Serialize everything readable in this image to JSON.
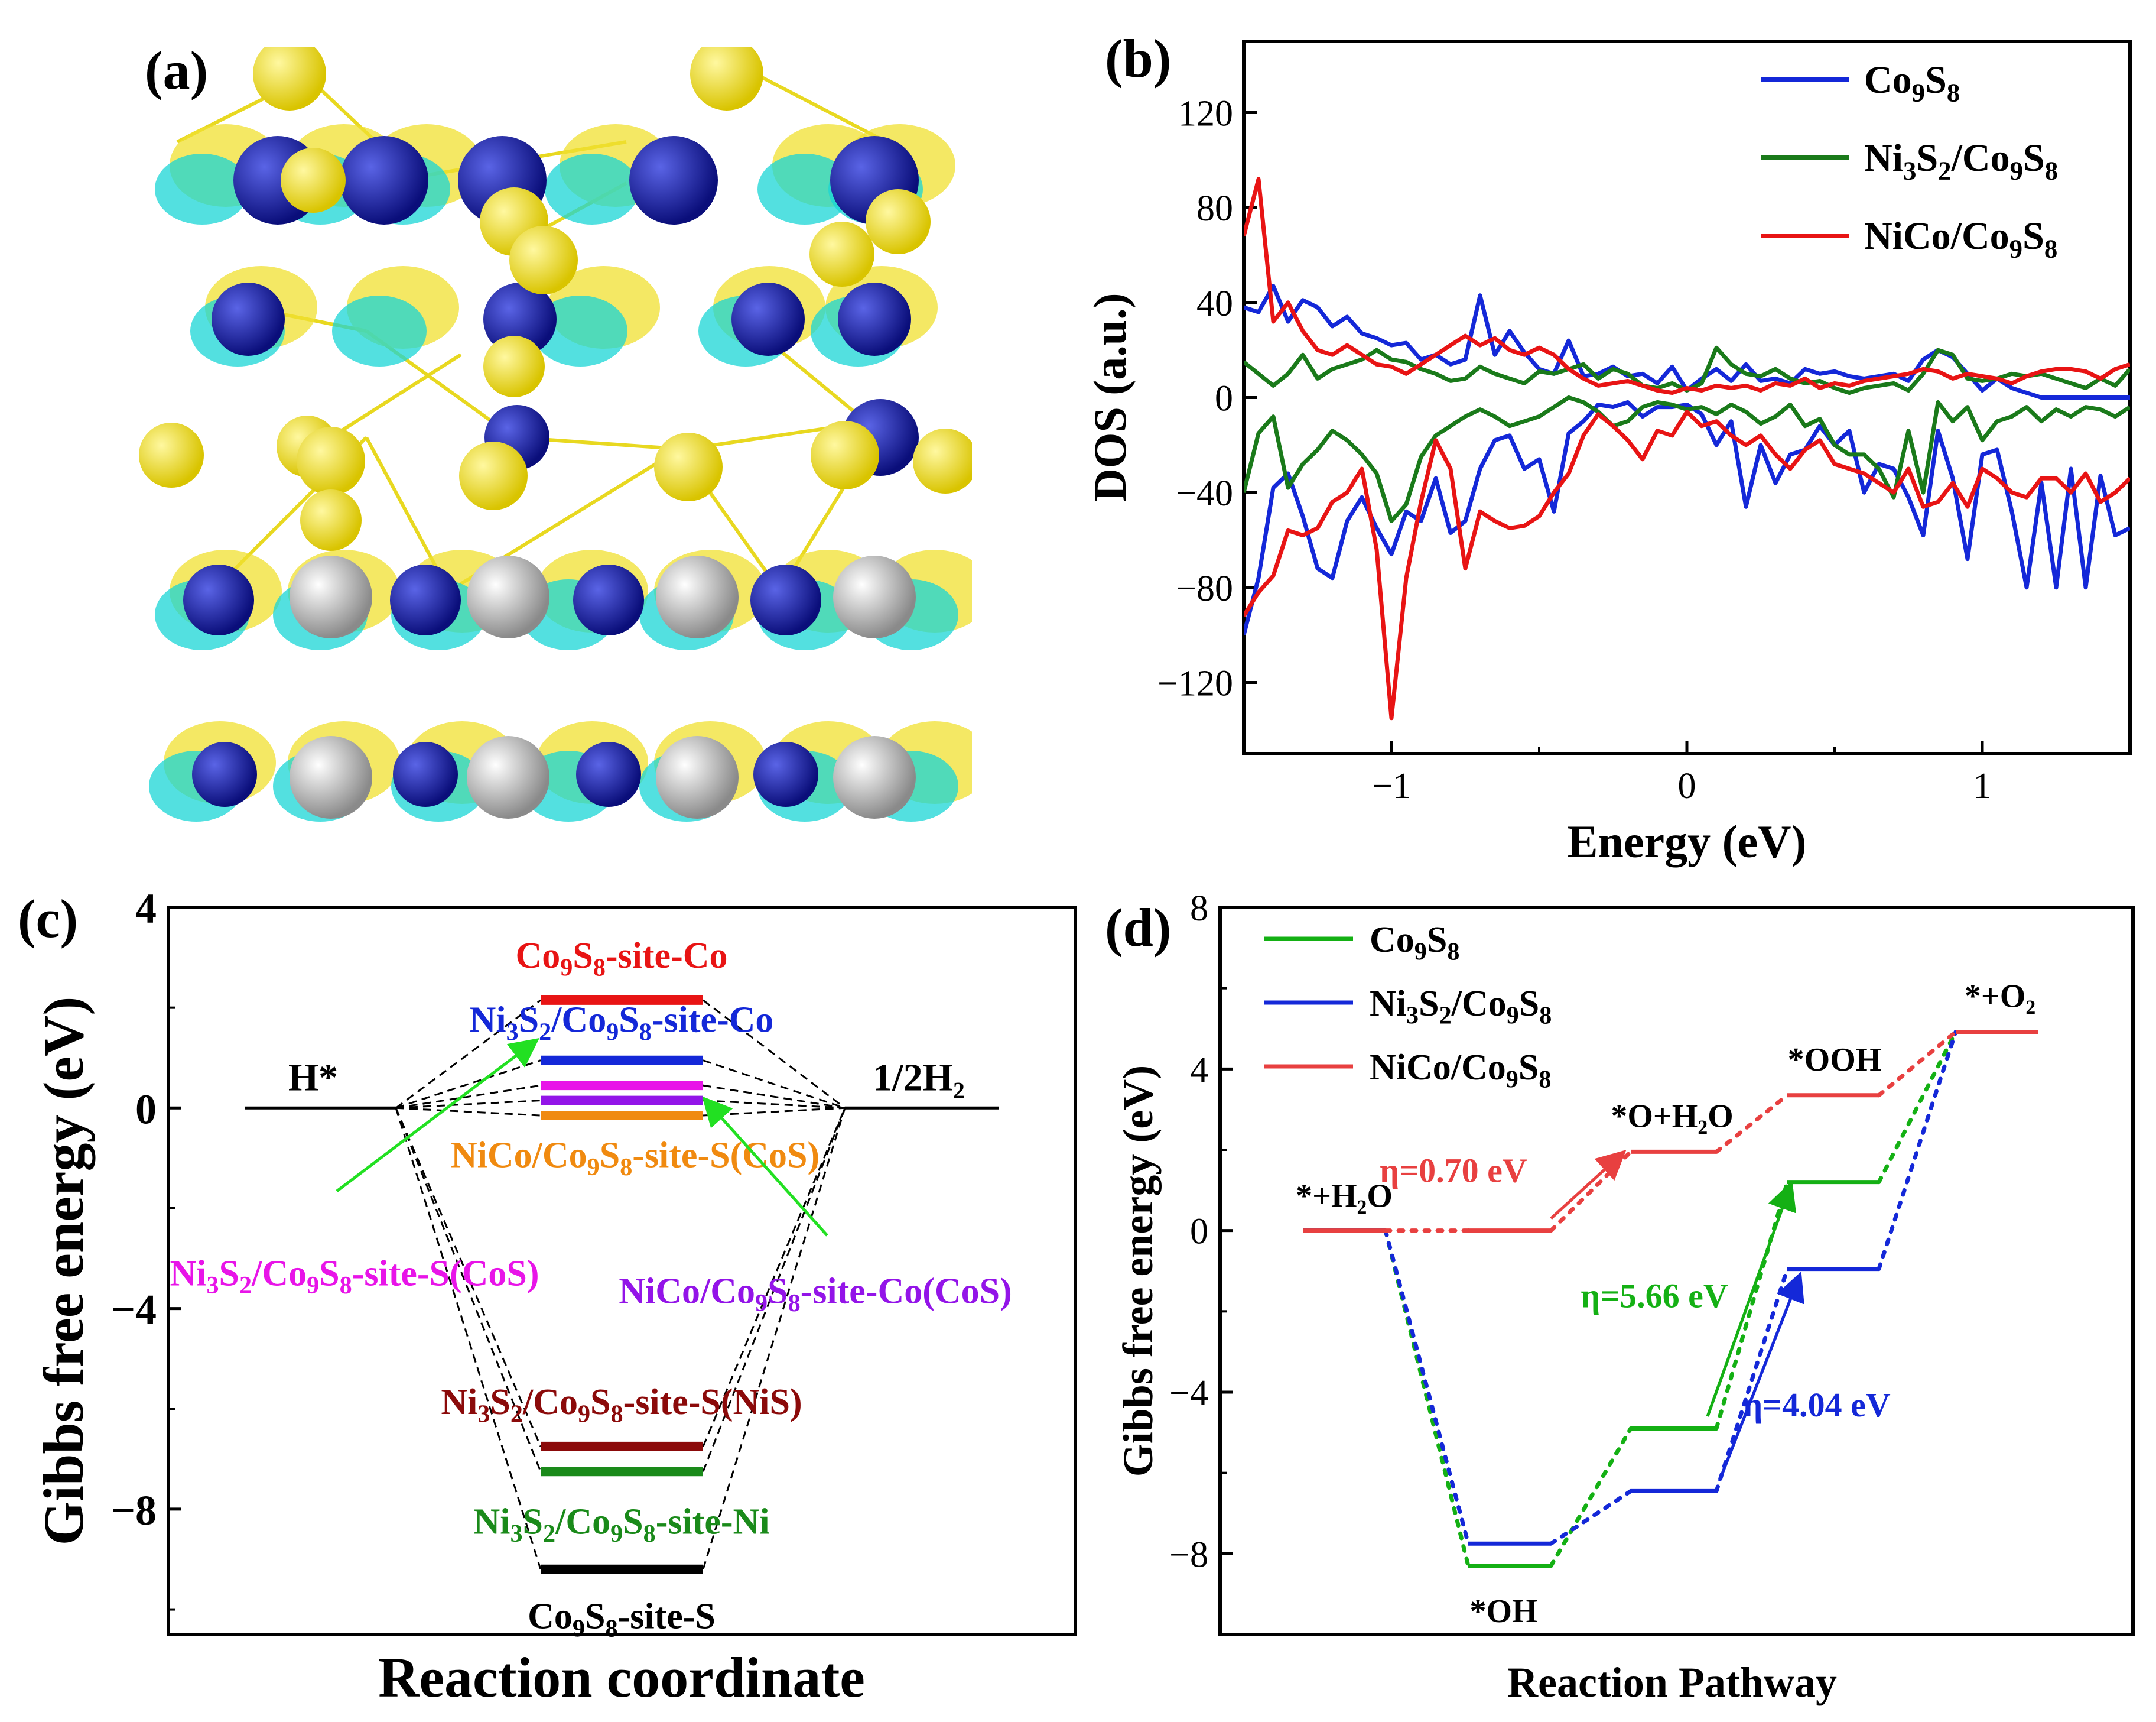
{
  "panels": {
    "a": {
      "label": "(a)"
    },
    "b": {
      "label": "(b)"
    },
    "c": {
      "label": "(c)"
    },
    "d": {
      "label": "(d)"
    }
  },
  "colors": {
    "co": "#1428d8",
    "ni": "#1a7a1a",
    "nico": "#e81414",
    "c_red": "#e81414",
    "c_blue": "#1428d8",
    "c_magenta": "#e814e8",
    "c_purple": "#9314e8",
    "c_orange": "#f08a10",
    "c_darkred": "#8b0a0a",
    "c_green": "#1a8a1a",
    "c_black": "#000000",
    "d_green": "#14b014",
    "d_blue": "#1428d8",
    "d_red": "#e84040",
    "arrow_green": "#22e022"
  },
  "chart_data": [
    {
      "panel": "b",
      "type": "line",
      "xlabel": "Energy (eV)",
      "ylabel": "DOS (a.u.)",
      "xlim": [
        -1.5,
        1.5
      ],
      "ylim": [
        -150,
        150
      ],
      "xticks": [
        -1,
        0,
        1
      ],
      "xtick_labels": [
        "−1",
        "0",
        "1"
      ],
      "yticks": [
        -120,
        -80,
        -40,
        0,
        40,
        80,
        120
      ],
      "ytick_labels": [
        "−120",
        "−80",
        "−40",
        "0",
        "40",
        "80",
        "120"
      ],
      "legend_position": "top-right",
      "series": [
        {
          "name": "Co9S8",
          "color_key": "co",
          "x": [
            -1.5,
            -1.45,
            -1.4,
            -1.35,
            -1.3,
            -1.25,
            -1.2,
            -1.15,
            -1.1,
            -1.05,
            -1.0,
            -0.95,
            -0.9,
            -0.85,
            -0.8,
            -0.75,
            -0.7,
            -0.65,
            -0.6,
            -0.55,
            -0.5,
            -0.45,
            -0.4,
            -0.35,
            -0.3,
            -0.25,
            -0.2,
            -0.15,
            -0.1,
            -0.05,
            0.0,
            0.05,
            0.1,
            0.15,
            0.2,
            0.25,
            0.3,
            0.35,
            0.4,
            0.45,
            0.5,
            0.55,
            0.6,
            0.65,
            0.7,
            0.75,
            0.8,
            0.85,
            0.9,
            0.95,
            1.0,
            1.05,
            1.1,
            1.15,
            1.2,
            1.25,
            1.3,
            1.35,
            1.4,
            1.45,
            1.5
          ],
          "y": [
            38,
            36,
            47,
            32,
            41,
            38,
            30,
            34,
            27,
            25,
            22,
            23,
            16,
            18,
            14,
            16,
            43,
            18,
            28,
            19,
            12,
            10,
            24,
            9,
            10,
            13,
            9,
            10,
            6,
            13,
            3,
            8,
            12,
            7,
            14,
            7,
            8,
            6,
            12,
            10,
            11,
            9,
            8,
            9,
            10,
            7,
            16,
            20,
            17,
            10,
            3,
            8,
            4,
            2,
            0,
            0,
            0,
            0,
            0,
            0,
            0
          ]
        },
        {
          "name": "Co9S8",
          "color_key": "co",
          "x": [
            -1.5,
            -1.45,
            -1.4,
            -1.35,
            -1.3,
            -1.25,
            -1.2,
            -1.15,
            -1.1,
            -1.05,
            -1.0,
            -0.95,
            -0.9,
            -0.85,
            -0.8,
            -0.75,
            -0.7,
            -0.65,
            -0.6,
            -0.55,
            -0.5,
            -0.45,
            -0.4,
            -0.35,
            -0.3,
            -0.25,
            -0.2,
            -0.15,
            -0.1,
            -0.05,
            0.0,
            0.05,
            0.1,
            0.15,
            0.2,
            0.25,
            0.3,
            0.35,
            0.4,
            0.45,
            0.5,
            0.55,
            0.6,
            0.65,
            0.7,
            0.75,
            0.8,
            0.85,
            0.9,
            0.95,
            1.0,
            1.05,
            1.1,
            1.15,
            1.2,
            1.25,
            1.3,
            1.35,
            1.4,
            1.45,
            1.5
          ],
          "y": [
            -100,
            -76,
            -38,
            -32,
            -50,
            -72,
            -76,
            -52,
            -42,
            -55,
            -66,
            -48,
            -52,
            -34,
            -57,
            -52,
            -30,
            -18,
            -16,
            -30,
            -26,
            -48,
            -15,
            -10,
            -3,
            -4,
            -2,
            -8,
            -4,
            -4,
            -3,
            -7,
            -20,
            -10,
            -46,
            -20,
            -36,
            -24,
            -22,
            -12,
            -20,
            -14,
            -40,
            -28,
            -30,
            -42,
            -58,
            -14,
            -34,
            -68,
            -24,
            -22,
            -48,
            -80,
            -36,
            -80,
            -30,
            -80,
            -33,
            -58,
            -55
          ]
        },
        {
          "name": "Ni3S2/Co9S8",
          "color_key": "ni",
          "x": [
            -1.5,
            -1.45,
            -1.4,
            -1.35,
            -1.3,
            -1.25,
            -1.2,
            -1.15,
            -1.1,
            -1.05,
            -1.0,
            -0.95,
            -0.9,
            -0.85,
            -0.8,
            -0.75,
            -0.7,
            -0.65,
            -0.6,
            -0.55,
            -0.5,
            -0.45,
            -0.4,
            -0.35,
            -0.3,
            -0.25,
            -0.2,
            -0.15,
            -0.1,
            -0.05,
            0.0,
            0.05,
            0.1,
            0.15,
            0.2,
            0.25,
            0.3,
            0.35,
            0.4,
            0.45,
            0.5,
            0.55,
            0.6,
            0.65,
            0.7,
            0.75,
            0.8,
            0.85,
            0.9,
            0.95,
            1.0,
            1.05,
            1.1,
            1.15,
            1.2,
            1.25,
            1.3,
            1.35,
            1.4,
            1.45,
            1.5
          ],
          "y": [
            15,
            10,
            5,
            10,
            18,
            8,
            12,
            14,
            16,
            20,
            16,
            15,
            12,
            10,
            7,
            8,
            13,
            10,
            8,
            6,
            11,
            10,
            12,
            14,
            8,
            12,
            10,
            5,
            4,
            6,
            3,
            6,
            21,
            14,
            10,
            9,
            12,
            8,
            6,
            7,
            4,
            2,
            4,
            5,
            6,
            3,
            10,
            20,
            18,
            8,
            7,
            8,
            10,
            9,
            10,
            8,
            6,
            4,
            8,
            5,
            12
          ]
        },
        {
          "name": "Ni3S2/Co9S8",
          "color_key": "ni",
          "x": [
            -1.5,
            -1.45,
            -1.4,
            -1.35,
            -1.3,
            -1.25,
            -1.2,
            -1.15,
            -1.1,
            -1.05,
            -1.0,
            -0.95,
            -0.9,
            -0.85,
            -0.8,
            -0.75,
            -0.7,
            -0.65,
            -0.6,
            -0.55,
            -0.5,
            -0.45,
            -0.4,
            -0.35,
            -0.3,
            -0.25,
            -0.2,
            -0.15,
            -0.1,
            -0.05,
            0.0,
            0.05,
            0.1,
            0.15,
            0.2,
            0.25,
            0.3,
            0.35,
            0.4,
            0.45,
            0.5,
            0.55,
            0.6,
            0.65,
            0.7,
            0.75,
            0.8,
            0.85,
            0.9,
            0.95,
            1.0,
            1.05,
            1.1,
            1.15,
            1.2,
            1.25,
            1.3,
            1.35,
            1.4,
            1.45,
            1.5
          ],
          "y": [
            -40,
            -15,
            -8,
            -38,
            -28,
            -22,
            -14,
            -18,
            -24,
            -32,
            -52,
            -45,
            -25,
            -16,
            -12,
            -8,
            -5,
            -8,
            -12,
            -10,
            -8,
            -4,
            0,
            -2,
            -6,
            -12,
            -10,
            -4,
            -2,
            -3,
            -5,
            -4,
            -7,
            -3,
            -6,
            -11,
            -8,
            -3,
            -12,
            -9,
            -20,
            -24,
            -24,
            -30,
            -42,
            -14,
            -40,
            -2,
            -10,
            -4,
            -18,
            -10,
            -8,
            -4,
            -10,
            -5,
            -8,
            -4,
            -5,
            -8,
            -4
          ]
        },
        {
          "name": "NiCo/Co9S8",
          "color_key": "nico",
          "x": [
            -1.5,
            -1.45,
            -1.4,
            -1.35,
            -1.3,
            -1.25,
            -1.2,
            -1.15,
            -1.1,
            -1.05,
            -1.0,
            -0.95,
            -0.9,
            -0.85,
            -0.8,
            -0.75,
            -0.7,
            -0.65,
            -0.6,
            -0.55,
            -0.5,
            -0.45,
            -0.4,
            -0.35,
            -0.3,
            -0.25,
            -0.2,
            -0.15,
            -0.1,
            -0.05,
            0.0,
            0.05,
            0.1,
            0.15,
            0.2,
            0.25,
            0.3,
            0.35,
            0.4,
            0.45,
            0.5,
            0.55,
            0.6,
            0.65,
            0.7,
            0.75,
            0.8,
            0.85,
            0.9,
            0.95,
            1.0,
            1.05,
            1.1,
            1.15,
            1.2,
            1.25,
            1.3,
            1.35,
            1.4,
            1.45,
            1.5
          ],
          "y": [
            68,
            92,
            32,
            40,
            28,
            20,
            18,
            22,
            18,
            14,
            13,
            10,
            14,
            18,
            22,
            26,
            22,
            25,
            20,
            18,
            21,
            18,
            12,
            8,
            5,
            6,
            7,
            5,
            3,
            2,
            4,
            3,
            5,
            4,
            5,
            3,
            6,
            5,
            8,
            4,
            6,
            5,
            7,
            8,
            9,
            10,
            12,
            11,
            8,
            10,
            9,
            8,
            6,
            9,
            11,
            12,
            12,
            11,
            8,
            12,
            14
          ]
        },
        {
          "name": "NiCo/Co9S8",
          "color_key": "nico",
          "x": [
            -1.5,
            -1.45,
            -1.4,
            -1.35,
            -1.3,
            -1.25,
            -1.2,
            -1.15,
            -1.1,
            -1.05,
            -1.0,
            -0.95,
            -0.9,
            -0.85,
            -0.8,
            -0.75,
            -0.7,
            -0.65,
            -0.6,
            -0.55,
            -0.5,
            -0.45,
            -0.4,
            -0.35,
            -0.3,
            -0.25,
            -0.2,
            -0.15,
            -0.1,
            -0.05,
            0.0,
            0.05,
            0.1,
            0.15,
            0.2,
            0.25,
            0.3,
            0.35,
            0.4,
            0.45,
            0.5,
            0.55,
            0.6,
            0.65,
            0.7,
            0.75,
            0.8,
            0.85,
            0.9,
            0.95,
            1.0,
            1.05,
            1.1,
            1.15,
            1.2,
            1.25,
            1.3,
            1.35,
            1.4,
            1.45,
            1.5
          ],
          "y": [
            -92,
            -82,
            -75,
            -56,
            -58,
            -55,
            -44,
            -40,
            -30,
            -64,
            -135,
            -76,
            -44,
            -18,
            -30,
            -72,
            -48,
            -52,
            -55,
            -54,
            -50,
            -40,
            -32,
            -16,
            -7,
            -12,
            -18,
            -26,
            -14,
            -16,
            -6,
            -12,
            -10,
            -16,
            -20,
            -16,
            -24,
            -30,
            -22,
            -18,
            -28,
            -30,
            -32,
            -36,
            -40,
            -30,
            -46,
            -44,
            -36,
            -46,
            -30,
            -34,
            -40,
            -42,
            -34,
            -34,
            -40,
            -32,
            -44,
            -40,
            -34
          ]
        }
      ]
    },
    {
      "panel": "c",
      "type": "line",
      "xlabel": "Reaction coordinate",
      "ylabel": "Gibbs free energy (eV)",
      "ylim": [
        -10.5,
        4
      ],
      "yticks": [
        -8,
        -4,
        0,
        4
      ],
      "ytick_labels": [
        "−8",
        "−4",
        "0",
        "4"
      ],
      "start_label": "H*",
      "end_label": "1/2H₂",
      "levels": [
        {
          "label": "Co9S8-site-Co",
          "value": 2.15,
          "color_key": "c_red"
        },
        {
          "label": "Ni3S2/Co9S8-site-Co",
          "value": 0.95,
          "color_key": "c_blue"
        },
        {
          "label": "Ni3S2/Co9S8-site-S(CoS)",
          "value": 0.45,
          "color_key": "c_magenta"
        },
        {
          "label": "NiCo/Co9S8-site-Co(CoS)",
          "value": 0.15,
          "color_key": "c_purple"
        },
        {
          "label": "NiCo/Co9S8-site-S(CoS)",
          "value": -0.15,
          "color_key": "c_orange"
        },
        {
          "label": "Ni3S2/Co9S8-site-S(NiS)",
          "value": -6.75,
          "color_key": "c_darkred"
        },
        {
          "label": "Ni3S2/Co9S8-site-Ni",
          "value": -7.25,
          "color_key": "c_green"
        },
        {
          "label": "Co9S8-site-S",
          "value": -9.2,
          "color_key": "c_black"
        }
      ]
    },
    {
      "panel": "d",
      "type": "line",
      "xlabel": "Reaction Pathway",
      "ylabel": "Gibbs free energy (eV)",
      "ylim": [
        -10,
        8
      ],
      "yticks": [
        -8,
        -4,
        0,
        4,
        8
      ],
      "ytick_labels": [
        "−8",
        "−4",
        "0",
        "4",
        "8"
      ],
      "legend_position": "top-left",
      "steps": [
        "*+H₂O",
        "*OH",
        "*O+H₂O",
        "*OOH",
        "*+O₂"
      ],
      "series": [
        {
          "name": "Co9S8",
          "color_key": "d_green",
          "values": [
            0,
            -8.3,
            -4.9,
            1.2,
            4.92
          ]
        },
        {
          "name": "Ni3S2/Co9S8",
          "color_key": "d_blue",
          "values": [
            0,
            -7.75,
            -6.45,
            -0.95,
            4.92
          ]
        },
        {
          "name": "NiCo/Co9S8",
          "color_key": "d_red",
          "values": [
            0,
            0,
            1.95,
            3.35,
            4.92
          ]
        }
      ],
      "annotations": [
        {
          "text": "η=0.70 eV",
          "color_key": "d_red"
        },
        {
          "text": "η=5.66 eV",
          "color_key": "d_green"
        },
        {
          "text": "η=4.04 eV",
          "color_key": "d_blue"
        }
      ]
    }
  ]
}
